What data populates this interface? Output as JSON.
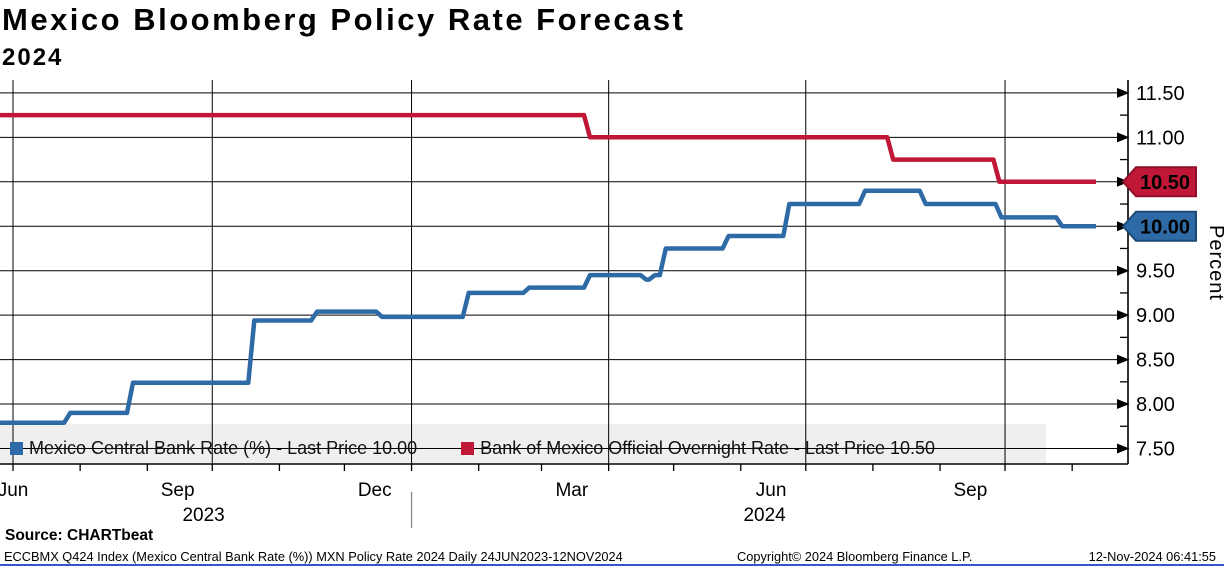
{
  "title": "Mexico Bloomberg Policy Rate Forecast",
  "subtitle": "2024",
  "colors": {
    "blue_line": "#2e6ba6",
    "blue_border": "#1c4a78",
    "red_line": "#c11736",
    "red_border": "#8d1028",
    "legend_band": "#f0efed",
    "grid": "#000000",
    "year_separator": "#8a8a8a"
  },
  "legend": [
    {
      "label": "Mexico Central Bank Rate (%) - Last Price 10.00",
      "color": "#2e6ba6"
    },
    {
      "label": "Bank of Mexico Official Overnight Rate - Last Price 10.50",
      "color": "#c11736"
    }
  ],
  "y_axis": {
    "label": "Percent",
    "min": 7.25,
    "max": 11.75,
    "major_step": 0.5,
    "minor_step": 0.25,
    "tick_labels": [
      "11.50",
      "11.00",
      "10.50",
      "10.00",
      "9.50",
      "9.00",
      "8.50",
      "8.00",
      "7.50"
    ]
  },
  "x_axis": {
    "range": [
      "2023-06-24",
      "2024-11-12"
    ],
    "month_labels": [
      {
        "text": "Jun",
        "anchor": "2023-07-01"
      },
      {
        "text": "Sep",
        "anchor": "2023-09-15"
      },
      {
        "text": "Dec",
        "anchor": "2023-12-15"
      },
      {
        "text": "Mar",
        "anchor": "2024-03-15"
      },
      {
        "text": "Jun",
        "anchor": "2024-06-15"
      },
      {
        "text": "Sep",
        "anchor": "2024-09-15"
      }
    ],
    "year_labels": [
      {
        "text": "2023",
        "anchor": "2023-09-27"
      },
      {
        "text": "2024",
        "anchor": "2024-06-12"
      }
    ],
    "year_separator_date": "2024-01-01"
  },
  "badges": [
    {
      "value": "10.50",
      "y_value": 10.5,
      "fill": "#c11736",
      "border": "#8d1028"
    },
    {
      "value": "10.00",
      "y_value": 10.0,
      "fill": "#2e6ba6",
      "border": "#1c4a78"
    }
  ],
  "footer": {
    "source": "Source: CHARTbeat",
    "description": "ECCBMX Q424 Index (Mexico Central Bank Rate (%)) MXN Policy Rate 2024  Daily 24JUN2023-12NOV2024",
    "copyright": "Copyright© 2024 Bloomberg Finance L.P.",
    "timestamp": "12-Nov-2024 06:41:55"
  },
  "chart_data": {
    "type": "line",
    "title": "Mexico Bloomberg Policy Rate Forecast 2024",
    "ylabel": "Percent",
    "ylim": [
      7.25,
      11.75
    ],
    "x_range": [
      "2023-06-24",
      "2024-11-12"
    ],
    "grid": true,
    "legend_position": "bottom",
    "series": [
      {
        "name": "Mexico Central Bank Rate (%)",
        "last_price": 10.0,
        "color": "#2e6ba6",
        "step": "after",
        "points": [
          [
            "2023-06-24",
            7.79
          ],
          [
            "2023-07-26",
            7.9
          ],
          [
            "2023-08-24",
            8.24
          ],
          [
            "2023-10-19",
            8.94
          ],
          [
            "2023-11-17",
            9.04
          ],
          [
            "2023-12-17",
            8.98
          ],
          [
            "2024-01-26",
            9.25
          ],
          [
            "2024-02-23",
            9.31
          ],
          [
            "2024-03-22",
            9.45
          ],
          [
            "2024-04-17",
            9.4
          ],
          [
            "2024-04-21",
            9.45
          ],
          [
            "2024-04-26",
            9.75
          ],
          [
            "2024-05-25",
            9.89
          ],
          [
            "2024-06-22",
            10.25
          ],
          [
            "2024-07-27",
            10.4
          ],
          [
            "2024-08-24",
            10.25
          ],
          [
            "2024-09-28",
            10.1
          ],
          [
            "2024-10-26",
            10.0
          ],
          [
            "2024-11-12",
            10.0
          ]
        ]
      },
      {
        "name": "Bank of Mexico Official Overnight Rate",
        "last_price": 10.5,
        "color": "#c11736",
        "step": "after",
        "points": [
          [
            "2023-06-24",
            11.25
          ],
          [
            "2024-03-22",
            11.0
          ],
          [
            "2024-08-09",
            10.75
          ],
          [
            "2024-09-27",
            10.5
          ],
          [
            "2024-11-12",
            10.5
          ]
        ]
      }
    ]
  }
}
